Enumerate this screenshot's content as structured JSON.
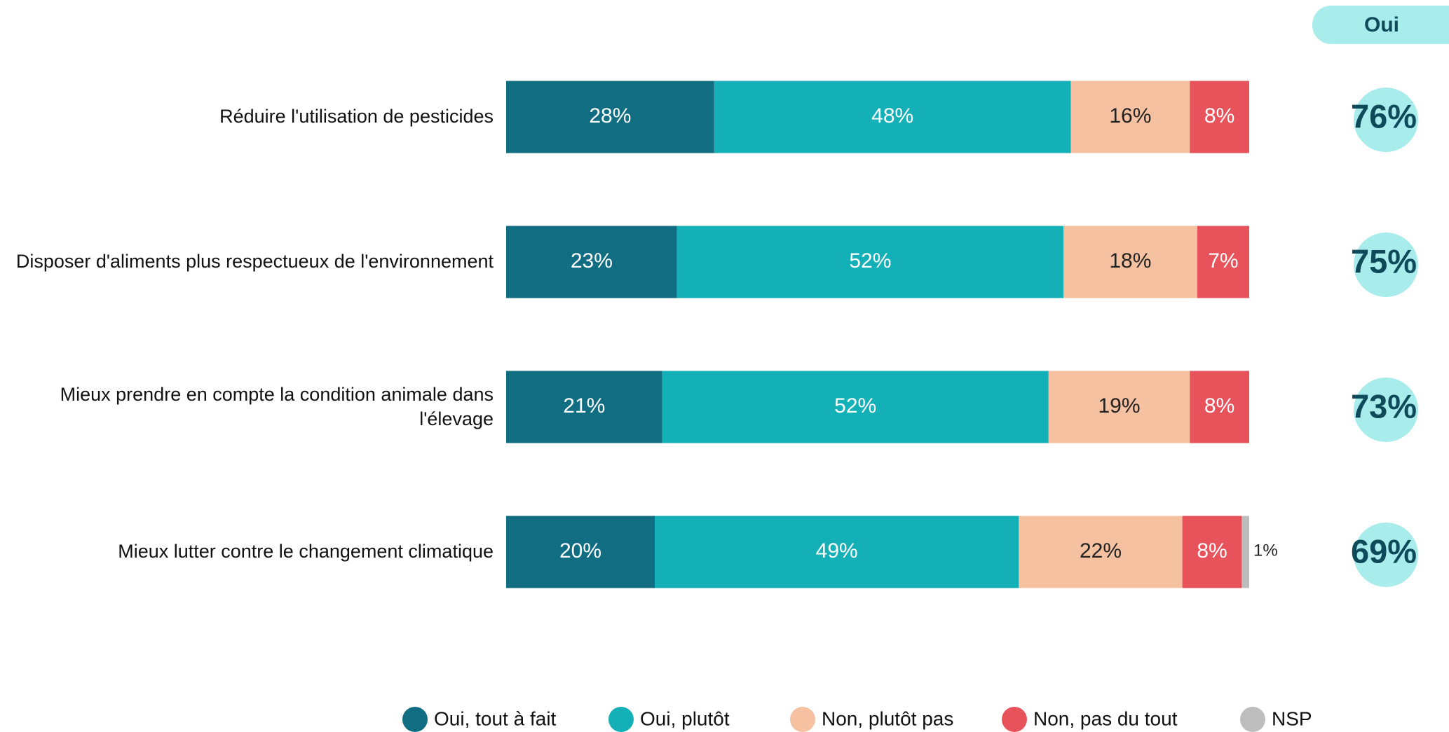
{
  "chart_data": {
    "type": "stacked-bar-horizontal",
    "categories": [
      "Réduire l'utilisation de pesticides",
      "Disposer d'aliments plus respectueux de l'environnement",
      "Mieux prendre en compte la condition animale dans l'élevage",
      "Mieux lutter contre le changement climatique"
    ],
    "xlim": [
      0,
      100
    ],
    "series": [
      {
        "name": "Oui, tout à fait",
        "color": "#116e82",
        "values": [
          28,
          23,
          21,
          20
        ],
        "value_labels": [
          "28%",
          "23%",
          "21%",
          "20%"
        ]
      },
      {
        "name": "Oui, plutôt",
        "color": "#14b0b8",
        "values": [
          48,
          52,
          52,
          49
        ],
        "value_labels": [
          "48%",
          "52%",
          "52%",
          "49%"
        ]
      },
      {
        "name": "Non, plutôt pas",
        "color": "#f6c1a0",
        "values": [
          16,
          18,
          19,
          22
        ],
        "value_labels": [
          "16%",
          "18%",
          "19%",
          "22%"
        ]
      },
      {
        "name": "Non, pas du tout",
        "color": "#e8525b",
        "values": [
          8,
          7,
          8,
          8
        ],
        "value_labels": [
          "8%",
          "7%",
          "8%",
          "8%"
        ]
      },
      {
        "name": "NSP",
        "color": "#bdbdbd",
        "values": [
          0,
          0,
          0,
          1
        ],
        "value_labels": [
          null,
          null,
          null,
          "1%"
        ]
      }
    ],
    "totals": {
      "title": "Oui",
      "color": "#a8ecec",
      "values": [
        76,
        75,
        73,
        69
      ],
      "value_labels": [
        "76%",
        "75%",
        "73%",
        "69%"
      ]
    },
    "legend": "bottom"
  }
}
